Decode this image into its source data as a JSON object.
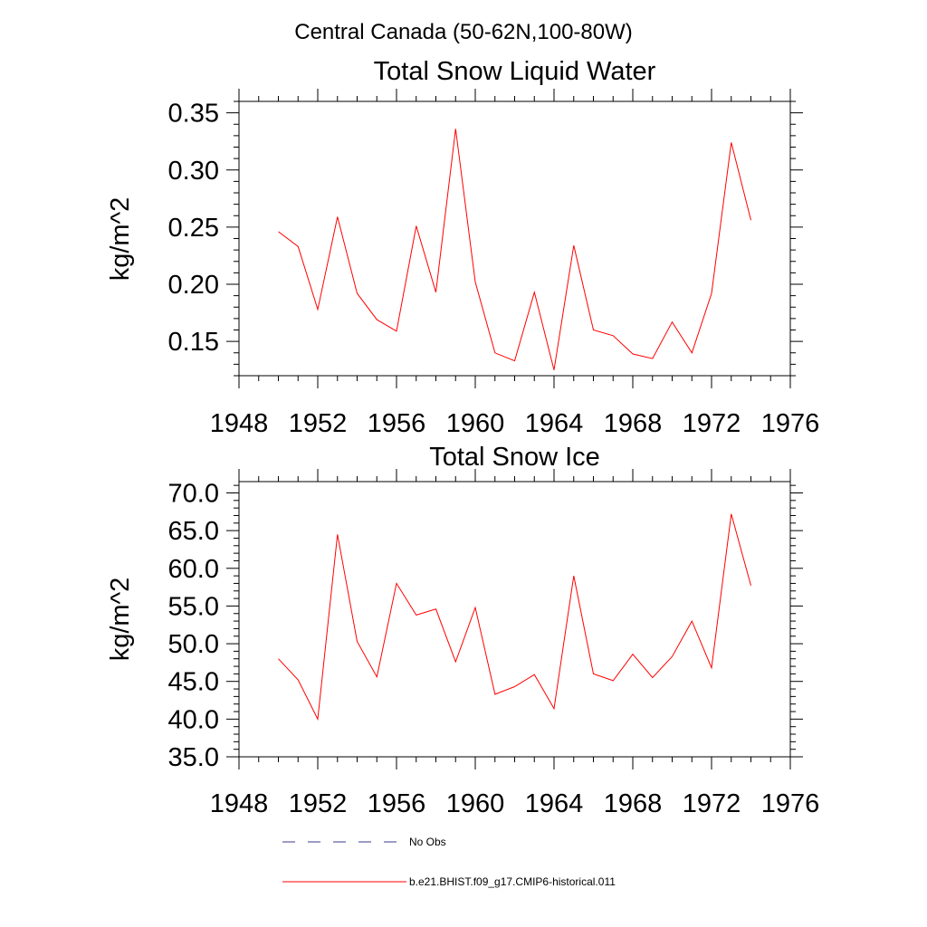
{
  "figure": {
    "suptitle": "Central Canada (50-62N,100-80W)"
  },
  "colors": {
    "model_series": "#ff0000",
    "obs_series": "#3a3a8c",
    "axes": "#000000"
  },
  "chart_data": [
    {
      "type": "line",
      "title": "Total Snow Liquid Water",
      "xlabel": "",
      "ylabel": "kg/m^2",
      "xlim": [
        1948,
        1976
      ],
      "ylim": [
        0.12,
        0.36
      ],
      "xticks": [
        1948,
        1952,
        1956,
        1960,
        1964,
        1968,
        1972,
        1976
      ],
      "yticks": [
        0.15,
        0.2,
        0.25,
        0.3,
        0.35
      ],
      "ytick_labels": [
        "0.15",
        "0.20",
        "0.25",
        "0.30",
        "0.35"
      ],
      "grid": false,
      "x": [
        1950,
        1951,
        1952,
        1953,
        1954,
        1955,
        1956,
        1957,
        1958,
        1959,
        1960,
        1961,
        1962,
        1963,
        1964,
        1965,
        1966,
        1967,
        1968,
        1969,
        1970,
        1971,
        1972,
        1973,
        1974
      ],
      "series": [
        {
          "name": "b.e21.BHIST.f09_g17.CMIP6-historical.011",
          "values": [
            0.246,
            0.233,
            0.178,
            0.259,
            0.192,
            0.169,
            0.159,
            0.251,
            0.193,
            0.336,
            0.202,
            0.14,
            0.133,
            0.193,
            0.125,
            0.234,
            0.16,
            0.155,
            0.139,
            0.135,
            0.167,
            0.14,
            0.192,
            0.324,
            0.256
          ]
        }
      ]
    },
    {
      "type": "line",
      "title": "Total Snow Ice",
      "xlabel": "",
      "ylabel": "kg/m^2",
      "xlim": [
        1948,
        1976
      ],
      "ylim": [
        35,
        71.5
      ],
      "xticks": [
        1948,
        1952,
        1956,
        1960,
        1964,
        1968,
        1972,
        1976
      ],
      "yticks": [
        35,
        40,
        45,
        50,
        55,
        60,
        65,
        70
      ],
      "ytick_labels": [
        "35.0",
        "40.0",
        "45.0",
        "50.0",
        "55.0",
        "60.0",
        "65.0",
        "70.0"
      ],
      "grid": false,
      "x": [
        1950,
        1951,
        1952,
        1953,
        1954,
        1955,
        1956,
        1957,
        1958,
        1959,
        1960,
        1961,
        1962,
        1963,
        1964,
        1965,
        1966,
        1967,
        1968,
        1969,
        1970,
        1971,
        1972,
        1973,
        1974
      ],
      "series": [
        {
          "name": "b.e21.BHIST.f09_g17.CMIP6-historical.011",
          "values": [
            48.0,
            45.2,
            40.0,
            64.5,
            50.3,
            45.6,
            58.0,
            53.8,
            54.6,
            47.6,
            54.8,
            43.3,
            44.3,
            45.9,
            41.4,
            59.0,
            46.0,
            45.1,
            48.6,
            45.5,
            48.3,
            53.0,
            46.8,
            67.2,
            57.7
          ]
        }
      ]
    }
  ],
  "legend": {
    "placement": "bottom-center",
    "entries": [
      {
        "label": "No Obs",
        "style": "dashed",
        "color": "#3a3a8c"
      },
      {
        "label": "b.e21.BHIST.f09_g17.CMIP6-historical.011",
        "style": "solid",
        "color": "#ff0000"
      }
    ]
  }
}
